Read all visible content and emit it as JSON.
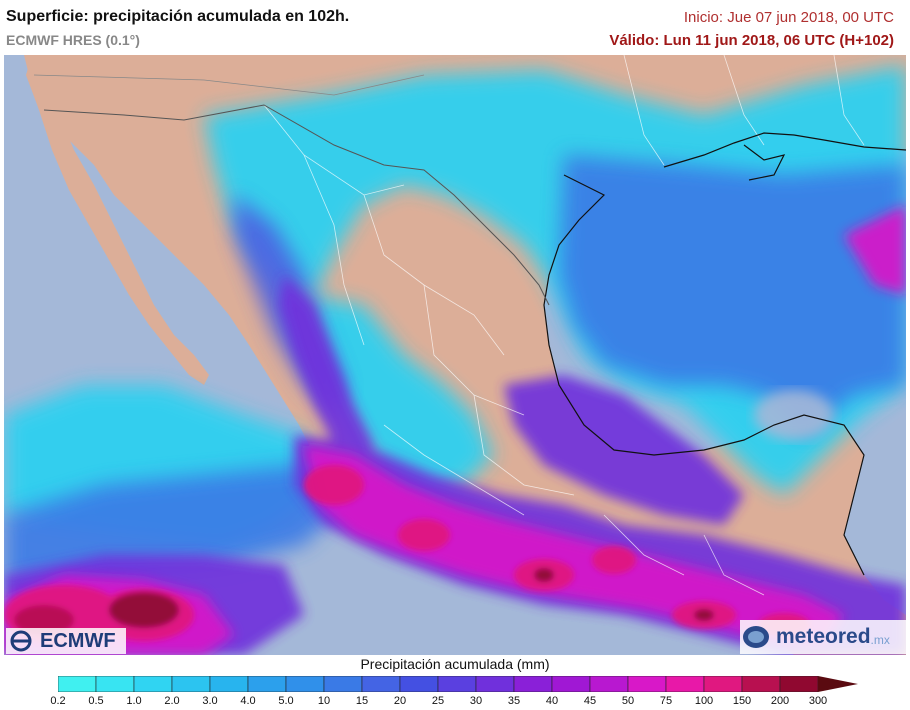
{
  "header": {
    "title": "Superficie: precipitación acumulada en 102h.",
    "model": "ECMWF HRES (0.1°)",
    "init": "Inicio: Jue 07 jun 2018, 00 UTC",
    "valid": "Válido: Lun 11 jun 2018, 06 UTC (H+102)"
  },
  "logos": {
    "left": "ECMWF",
    "right_main": "meteored",
    "right_suffix": ".mx"
  },
  "legend": {
    "title": "Precipitación acumulada (mm)",
    "ticks": [
      "0.2",
      "0.5",
      "1.0",
      "2.0",
      "3.0",
      "4.0",
      "5.0",
      "10",
      "15",
      "20",
      "25",
      "30",
      "35",
      "40",
      "45",
      "50",
      "75",
      "100",
      "150",
      "200",
      "300"
    ],
    "colors": [
      "#40f0f0",
      "#38e4f2",
      "#30d4f2",
      "#2cc4f0",
      "#28b4ee",
      "#2ca0ec",
      "#3090ea",
      "#3a7ae6",
      "#4464e4",
      "#4450e2",
      "#5a40e0",
      "#7030dc",
      "#8a20d8",
      "#a018d4",
      "#b818d0",
      "#d818c8",
      "#e818a8",
      "#e01880",
      "#b81050",
      "#900830"
    ],
    "last_color": "#5a0a10"
  },
  "map": {
    "ocean_color": "#a4b8d8",
    "land_color": "#dcae98",
    "border_color": "#ffffff",
    "coast_color": "#111111"
  }
}
